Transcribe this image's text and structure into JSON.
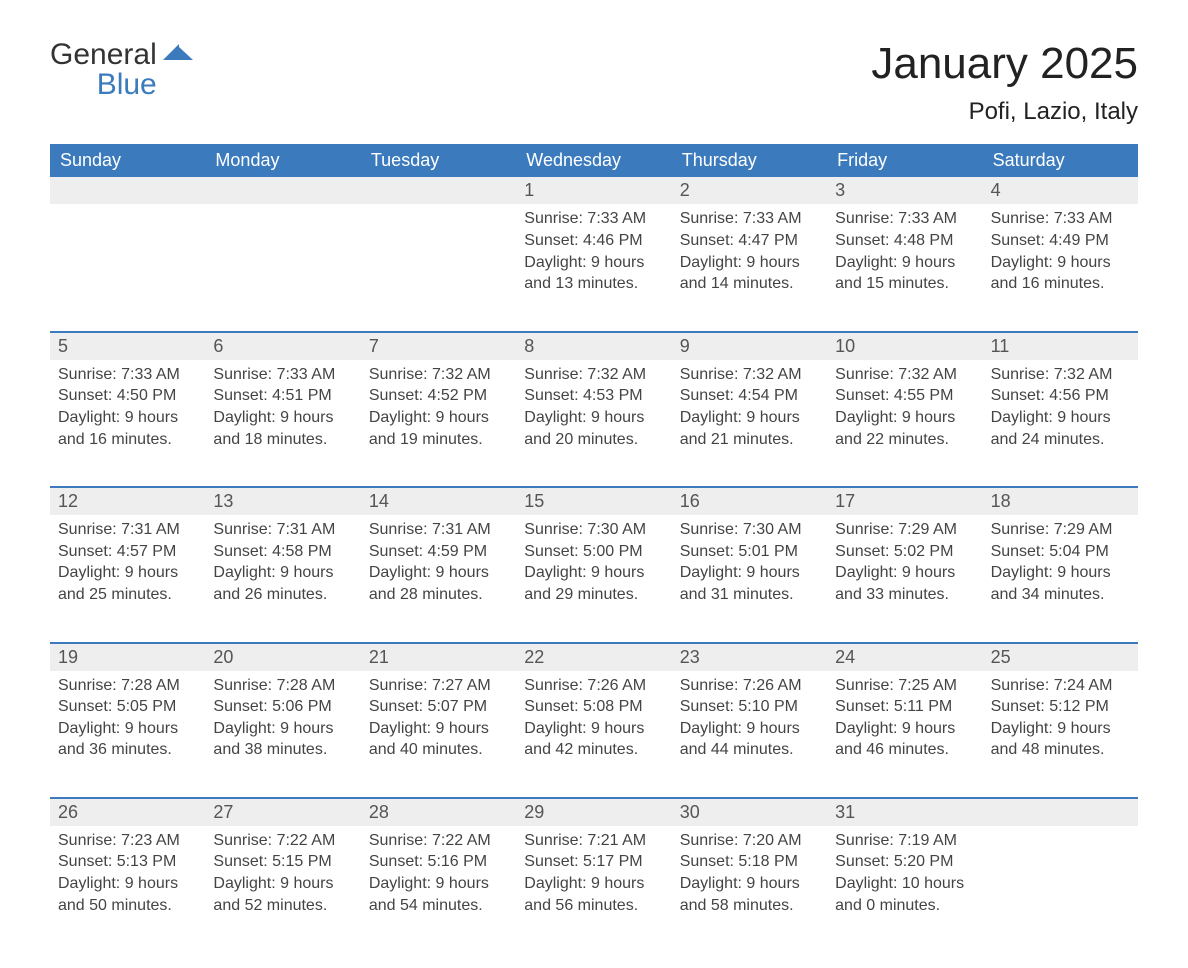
{
  "brand": {
    "word1": "General",
    "word2": "Blue",
    "logo_dark_color": "#333333",
    "logo_blue_color": "#3a7abd"
  },
  "header": {
    "title": "January 2025",
    "location": "Pofi, Lazio, Italy"
  },
  "colors": {
    "header_bg": "#3a7abd",
    "band_bg": "#eeeeee",
    "divider": "#3a7abd",
    "text": "#333333",
    "background": "#ffffff"
  },
  "labels": {
    "sunrise_prefix": "Sunrise: ",
    "sunset_prefix": "Sunset: ",
    "daylight_prefix": "Daylight: "
  },
  "calendar": {
    "days_of_week": [
      "Sunday",
      "Monday",
      "Tuesday",
      "Wednesday",
      "Thursday",
      "Friday",
      "Saturday"
    ],
    "weeks": [
      [
        null,
        null,
        null,
        {
          "day": "1",
          "sunrise": "7:33 AM",
          "sunset": "4:46 PM",
          "daylight": "9 hours and 13 minutes."
        },
        {
          "day": "2",
          "sunrise": "7:33 AM",
          "sunset": "4:47 PM",
          "daylight": "9 hours and 14 minutes."
        },
        {
          "day": "3",
          "sunrise": "7:33 AM",
          "sunset": "4:48 PM",
          "daylight": "9 hours and 15 minutes."
        },
        {
          "day": "4",
          "sunrise": "7:33 AM",
          "sunset": "4:49 PM",
          "daylight": "9 hours and 16 minutes."
        }
      ],
      [
        {
          "day": "5",
          "sunrise": "7:33 AM",
          "sunset": "4:50 PM",
          "daylight": "9 hours and 16 minutes."
        },
        {
          "day": "6",
          "sunrise": "7:33 AM",
          "sunset": "4:51 PM",
          "daylight": "9 hours and 18 minutes."
        },
        {
          "day": "7",
          "sunrise": "7:32 AM",
          "sunset": "4:52 PM",
          "daylight": "9 hours and 19 minutes."
        },
        {
          "day": "8",
          "sunrise": "7:32 AM",
          "sunset": "4:53 PM",
          "daylight": "9 hours and 20 minutes."
        },
        {
          "day": "9",
          "sunrise": "7:32 AM",
          "sunset": "4:54 PM",
          "daylight": "9 hours and 21 minutes."
        },
        {
          "day": "10",
          "sunrise": "7:32 AM",
          "sunset": "4:55 PM",
          "daylight": "9 hours and 22 minutes."
        },
        {
          "day": "11",
          "sunrise": "7:32 AM",
          "sunset": "4:56 PM",
          "daylight": "9 hours and 24 minutes."
        }
      ],
      [
        {
          "day": "12",
          "sunrise": "7:31 AM",
          "sunset": "4:57 PM",
          "daylight": "9 hours and 25 minutes."
        },
        {
          "day": "13",
          "sunrise": "7:31 AM",
          "sunset": "4:58 PM",
          "daylight": "9 hours and 26 minutes."
        },
        {
          "day": "14",
          "sunrise": "7:31 AM",
          "sunset": "4:59 PM",
          "daylight": "9 hours and 28 minutes."
        },
        {
          "day": "15",
          "sunrise": "7:30 AM",
          "sunset": "5:00 PM",
          "daylight": "9 hours and 29 minutes."
        },
        {
          "day": "16",
          "sunrise": "7:30 AM",
          "sunset": "5:01 PM",
          "daylight": "9 hours and 31 minutes."
        },
        {
          "day": "17",
          "sunrise": "7:29 AM",
          "sunset": "5:02 PM",
          "daylight": "9 hours and 33 minutes."
        },
        {
          "day": "18",
          "sunrise": "7:29 AM",
          "sunset": "5:04 PM",
          "daylight": "9 hours and 34 minutes."
        }
      ],
      [
        {
          "day": "19",
          "sunrise": "7:28 AM",
          "sunset": "5:05 PM",
          "daylight": "9 hours and 36 minutes."
        },
        {
          "day": "20",
          "sunrise": "7:28 AM",
          "sunset": "5:06 PM",
          "daylight": "9 hours and 38 minutes."
        },
        {
          "day": "21",
          "sunrise": "7:27 AM",
          "sunset": "5:07 PM",
          "daylight": "9 hours and 40 minutes."
        },
        {
          "day": "22",
          "sunrise": "7:26 AM",
          "sunset": "5:08 PM",
          "daylight": "9 hours and 42 minutes."
        },
        {
          "day": "23",
          "sunrise": "7:26 AM",
          "sunset": "5:10 PM",
          "daylight": "9 hours and 44 minutes."
        },
        {
          "day": "24",
          "sunrise": "7:25 AM",
          "sunset": "5:11 PM",
          "daylight": "9 hours and 46 minutes."
        },
        {
          "day": "25",
          "sunrise": "7:24 AM",
          "sunset": "5:12 PM",
          "daylight": "9 hours and 48 minutes."
        }
      ],
      [
        {
          "day": "26",
          "sunrise": "7:23 AM",
          "sunset": "5:13 PM",
          "daylight": "9 hours and 50 minutes."
        },
        {
          "day": "27",
          "sunrise": "7:22 AM",
          "sunset": "5:15 PM",
          "daylight": "9 hours and 52 minutes."
        },
        {
          "day": "28",
          "sunrise": "7:22 AM",
          "sunset": "5:16 PM",
          "daylight": "9 hours and 54 minutes."
        },
        {
          "day": "29",
          "sunrise": "7:21 AM",
          "sunset": "5:17 PM",
          "daylight": "9 hours and 56 minutes."
        },
        {
          "day": "30",
          "sunrise": "7:20 AM",
          "sunset": "5:18 PM",
          "daylight": "9 hours and 58 minutes."
        },
        {
          "day": "31",
          "sunrise": "7:19 AM",
          "sunset": "5:20 PM",
          "daylight": "10 hours and 0 minutes."
        },
        null
      ]
    ]
  }
}
